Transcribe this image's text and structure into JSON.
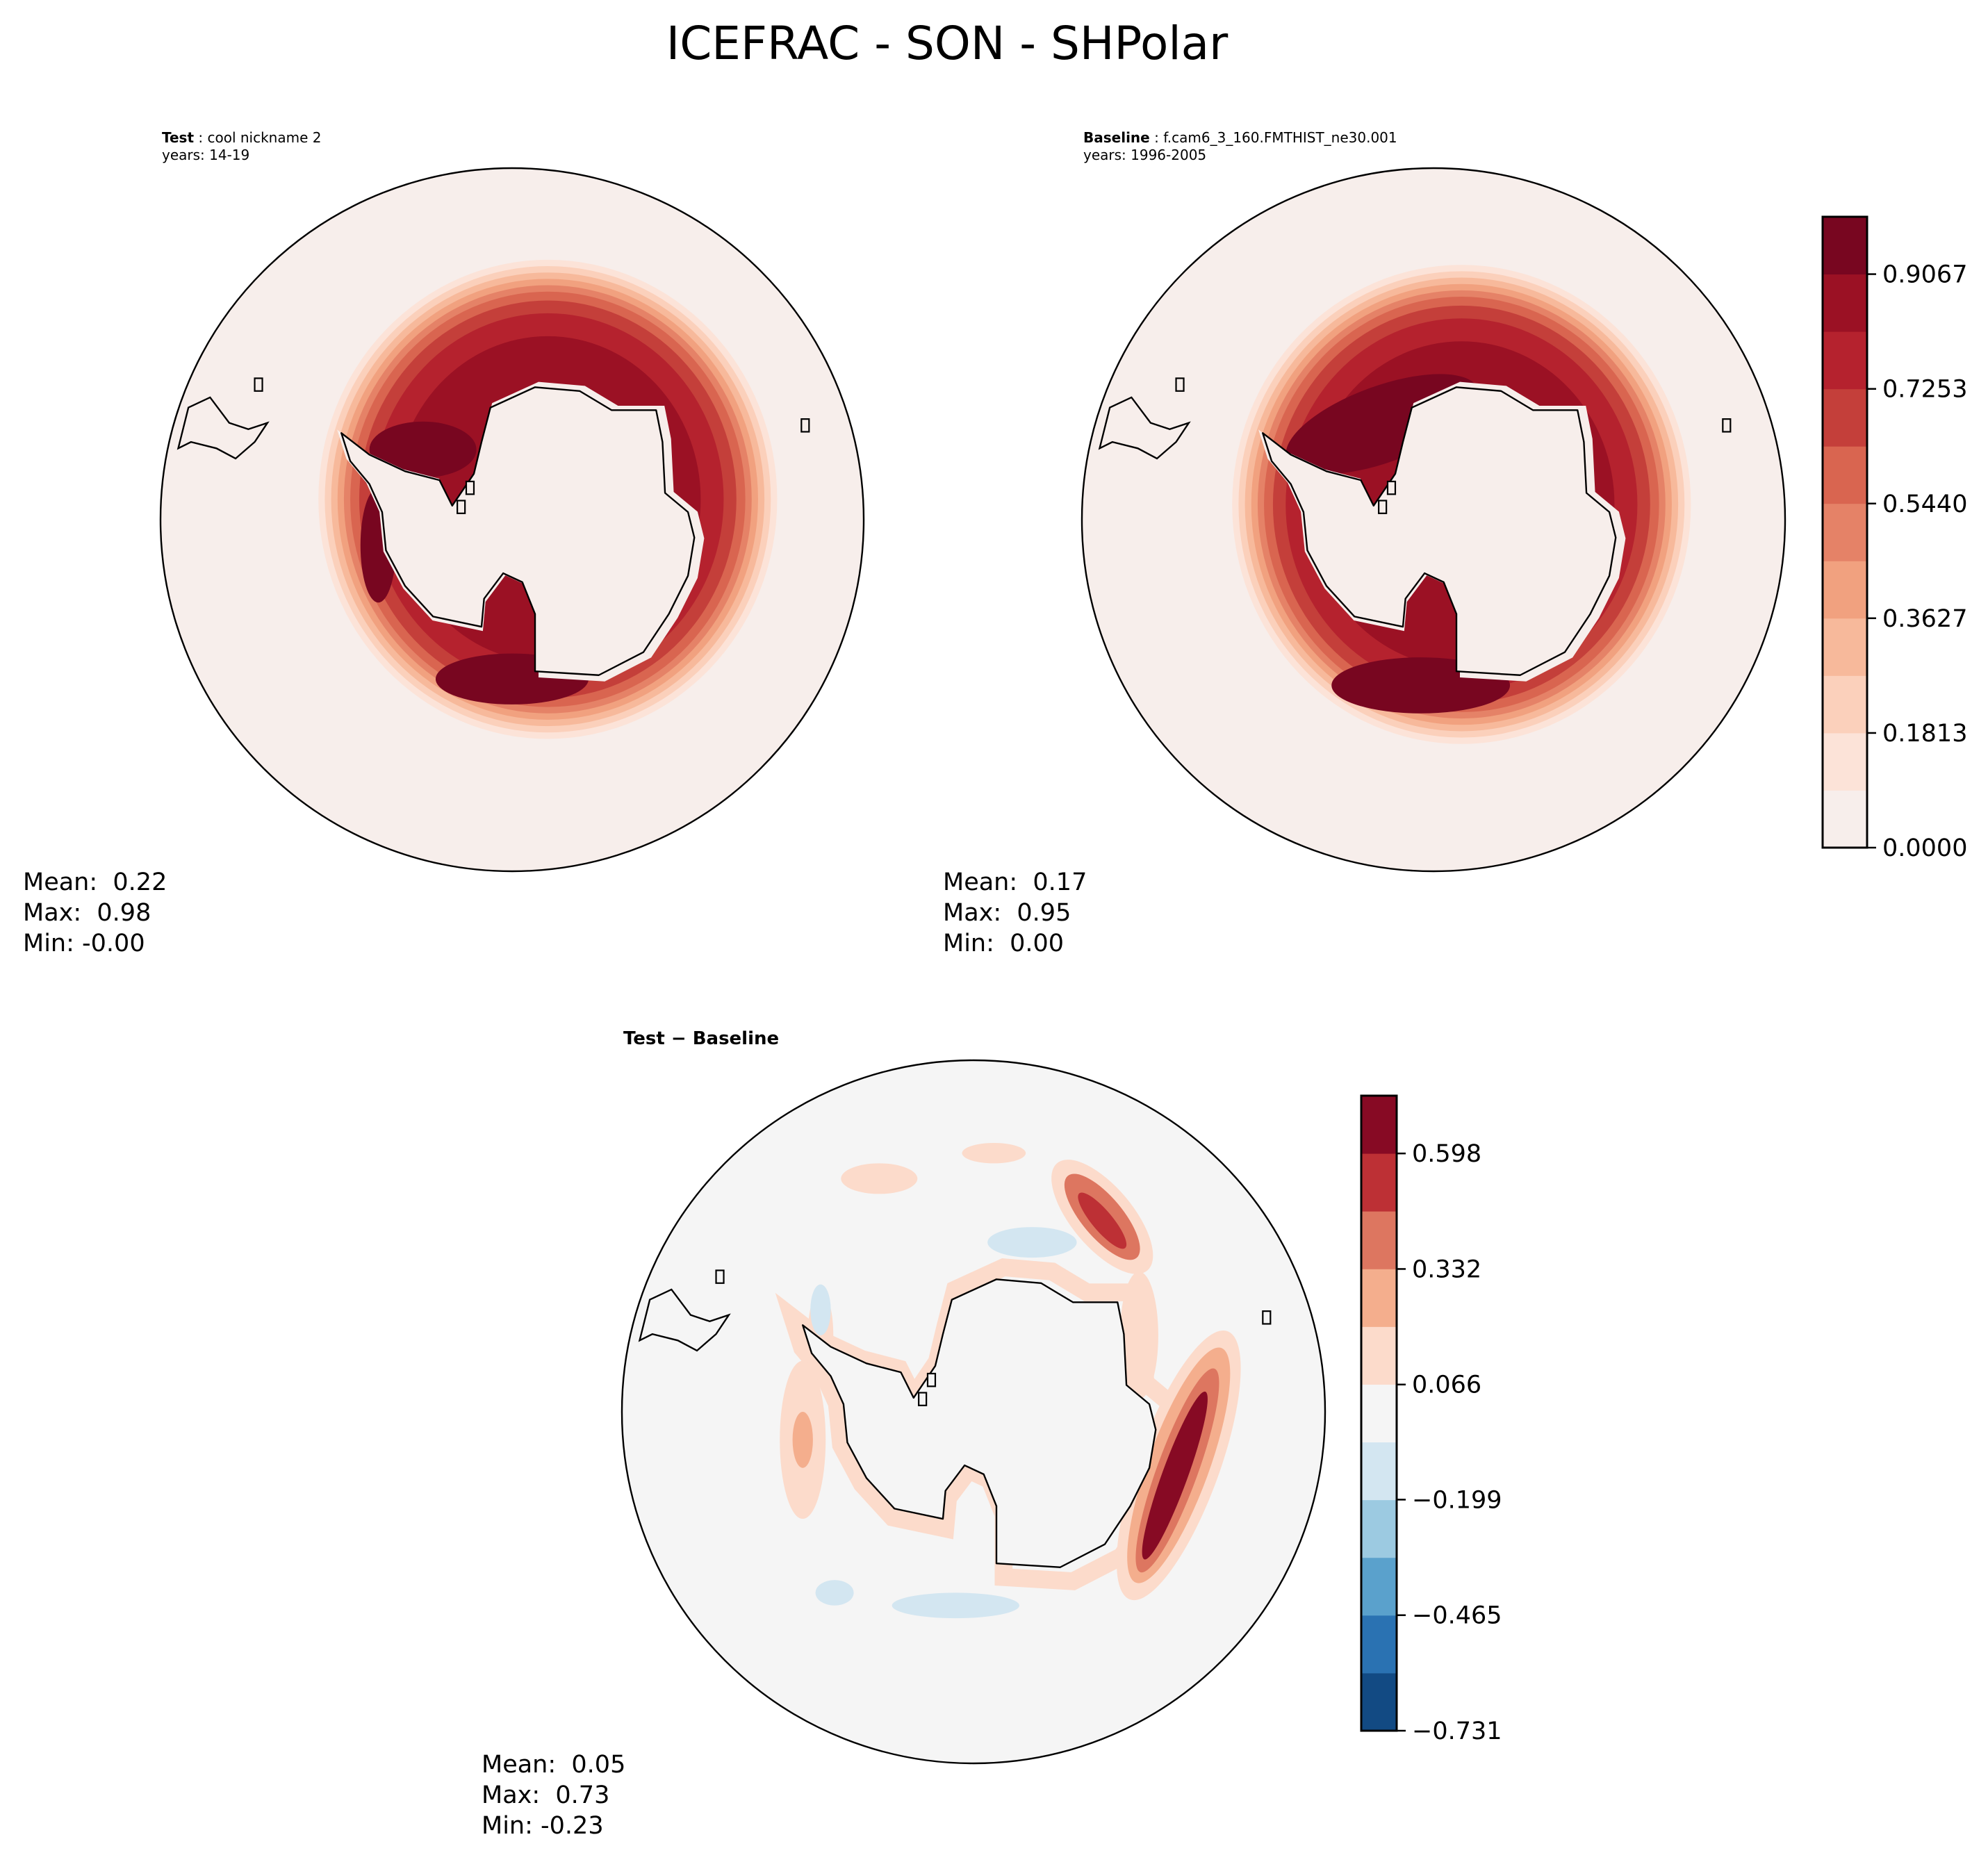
{
  "title": "ICEFRAC - SON - SHPolar",
  "panels": {
    "test": {
      "label_bold": "Test",
      "label_rest": " : cool nickname 2",
      "years": "years: 14-19",
      "stats": {
        "mean": "Mean:  0.22",
        "max": "Max:  0.98",
        "min": "Min: -0.00"
      }
    },
    "baseline": {
      "label_bold": "Baseline",
      "label_rest": " : f.cam6_3_160.FMTHIST_ne30.001",
      "years": "years: 1996-2005",
      "stats": {
        "mean": "Mean:  0.17",
        "max": "Max:  0.95",
        "min": "Min:  0.00"
      }
    },
    "diff": {
      "label_bold": "Test − Baseline",
      "stats": {
        "mean": "Mean:  0.05",
        "max": "Max:  0.73",
        "min": "Min: -0.23"
      }
    }
  },
  "chart_data": [
    {
      "type": "heatmap",
      "name": "Test ICEFRAC SON (South Polar stereographic contour map)",
      "variable": "ICEFRAC",
      "season": "SON",
      "region": "SHPolar",
      "mean": 0.22,
      "max": 0.98,
      "min": -0.0
    },
    {
      "type": "heatmap",
      "name": "Baseline ICEFRAC SON",
      "mean": 0.17,
      "max": 0.95,
      "min": 0.0
    },
    {
      "type": "heatmap",
      "name": "Test - Baseline difference",
      "mean": 0.05,
      "max": 0.73,
      "min": -0.23
    }
  ],
  "colorbars": {
    "main": {
      "range": [
        0.0,
        0.9974
      ],
      "ticks": [
        "0.0000",
        "0.1813",
        "0.3627",
        "0.5440",
        "0.7253",
        "0.9067"
      ],
      "tick_values": [
        0.0,
        0.1813,
        0.3627,
        0.544,
        0.7253,
        0.9067
      ],
      "colors": [
        "#f7eeeb",
        "#fce3d8",
        "#fbd0bb",
        "#f7b99b",
        "#f1a17f",
        "#e58267",
        "#d96550",
        "#c43f3a",
        "#b5222e",
        "#9b1124",
        "#780620"
      ]
    },
    "diff": {
      "range": [
        -0.731,
        0.731
      ],
      "ticks": [
        "−0.731",
        "−0.465",
        "−0.199",
        "0.066",
        "0.332",
        "0.598"
      ],
      "tick_values": [
        -0.731,
        -0.465,
        -0.199,
        0.066,
        0.332,
        0.598
      ],
      "colors": [
        "#124a83",
        "#2a72b2",
        "#5aa1cc",
        "#9ccae1",
        "#d3e6f1",
        "#f5f5f5",
        "#fcdbcb",
        "#f4ae8d",
        "#dd7660",
        "#bd3035",
        "#870a24"
      ]
    }
  }
}
